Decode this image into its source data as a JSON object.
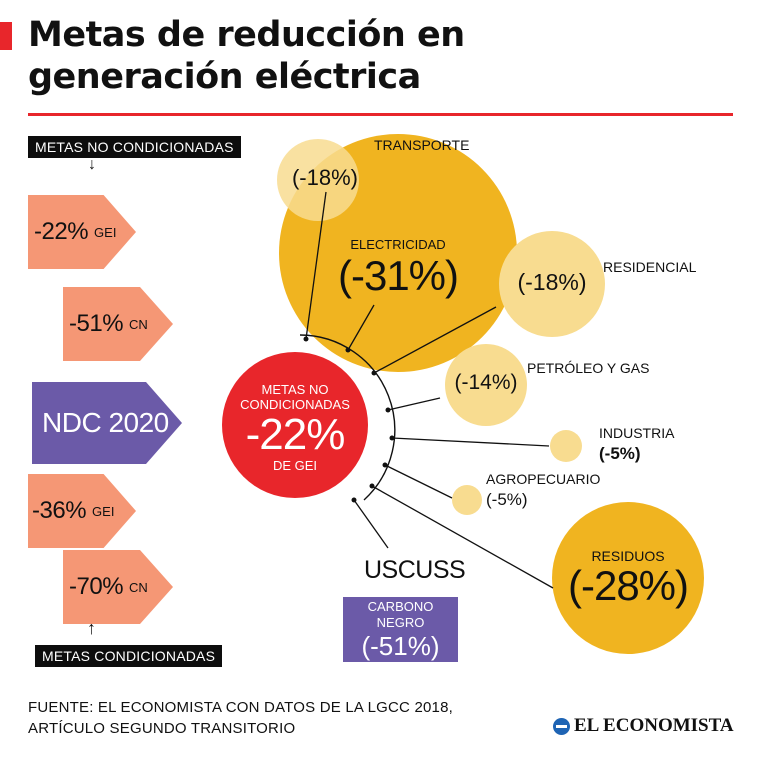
{
  "header": {
    "title_line1": "Metas de reducción en",
    "title_line2": "generación eléctrica"
  },
  "left": {
    "tag_top": "METAS NO CONDICIONADAS",
    "tag_bottom": "METAS CONDICIONADAS",
    "arrows": [
      {
        "value": "-22%",
        "unit": "GEI"
      },
      {
        "value": "-51%",
        "unit": "CN"
      },
      {
        "value": "-36%",
        "unit": "GEI"
      },
      {
        "value": "-70%",
        "unit": "CN"
      }
    ],
    "ndc_label": "NDC 2020"
  },
  "center": {
    "line1": "METAS NO",
    "line2": "CONDICIONADAS",
    "value": "-22%",
    "unit": "DE GEI"
  },
  "sectors": [
    {
      "name": "TRANSPORTE",
      "value": "(-18%)"
    },
    {
      "name": "ELECTRICIDAD",
      "value": "(-31%)"
    },
    {
      "name": "RESIDENCIAL",
      "value": "(-18%)"
    },
    {
      "name": "PETRÓLEO Y GAS",
      "value": "(-14%)"
    },
    {
      "name": "INDUSTRIA",
      "value": "(-5%)"
    },
    {
      "name": "AGROPECUARIO",
      "value": "(-5%)"
    },
    {
      "name": "RESIDUOS",
      "value": "(-28%)"
    }
  ],
  "uscuss": "USCUSS",
  "carbono": {
    "label": "CARBONO NEGRO",
    "value": "(-51%)"
  },
  "footer": {
    "source_line1": "FUENTE: EL ECONOMISTA CON DATOS DE LA LGCC 2018,",
    "source_line2": "ARTÍCULO SEGUNDO TRANSITORIO",
    "logo": "EL ECONOMISTA"
  },
  "colors": {
    "accent_red": "#e8262b",
    "salmon": "#f59775",
    "purple": "#6b5aa8",
    "gold": "#f0b420",
    "light_gold": "#f8dc90"
  }
}
